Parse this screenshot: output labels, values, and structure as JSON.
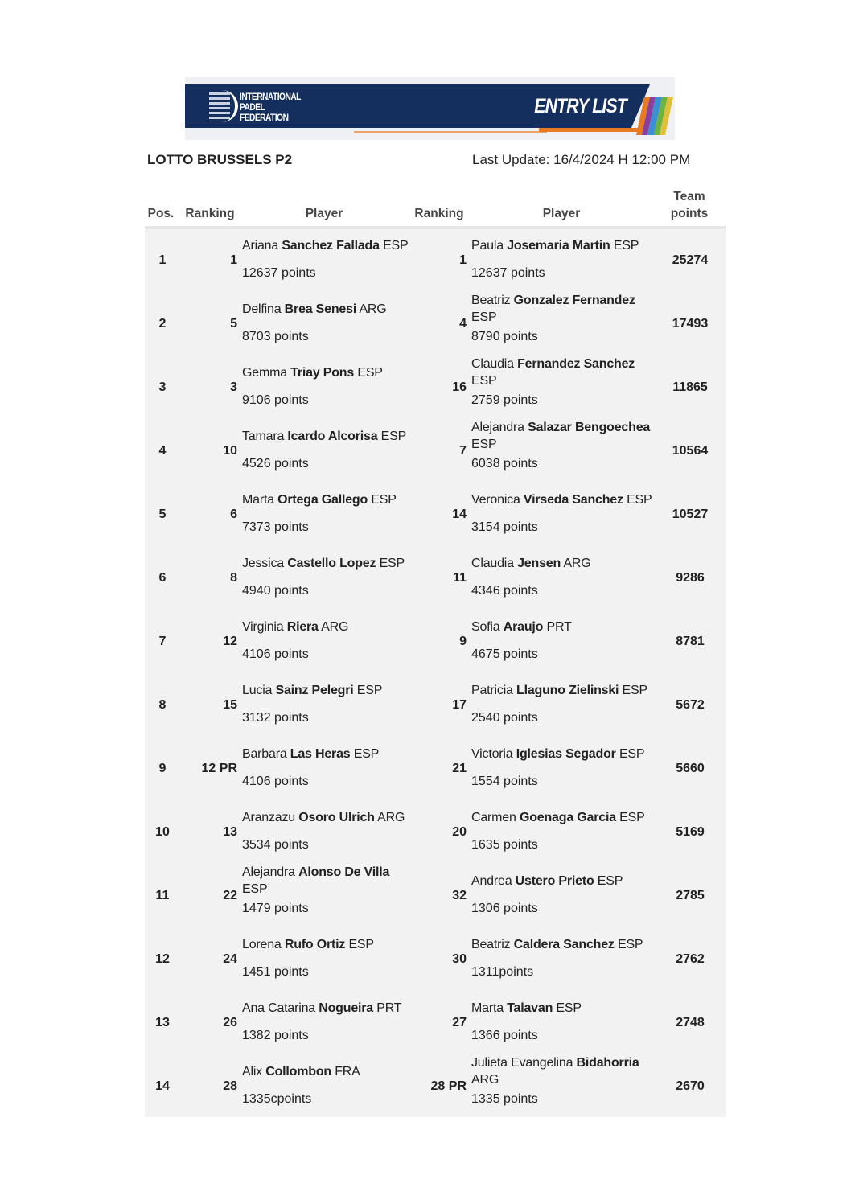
{
  "header": {
    "logo_text": [
      "INTERNATIONAL",
      "PADEL",
      "FEDERATION"
    ],
    "banner_title": "ENTRY LIST",
    "stripe_colors": [
      "#e77a23",
      "#8a3fa0",
      "#3c8fd0",
      "#6cb33f",
      "#e0c03a"
    ],
    "navy": "#142f5e"
  },
  "event_title": "LOTTO BRUSSELS P2",
  "last_update": "Last Update: 16/4/2024 H 12:00 PM",
  "columns": {
    "pos": "Pos.",
    "ranking1": "Ranking",
    "player1": "Player",
    "ranking2": "Ranking",
    "player2": "Player",
    "team_points": "Team points"
  },
  "rows": [
    {
      "pos": "1",
      "r1": "1",
      "p1": {
        "first": "Ariana",
        "last": "Sanchez Fallada",
        "country": "ESP",
        "points": "12637 points"
      },
      "r2": "1",
      "p2": {
        "first": "Paula",
        "last": "Josemaria Martin",
        "country": "ESP",
        "points": "12637 points"
      },
      "team": "25274"
    },
    {
      "pos": "2",
      "r1": "5",
      "p1": {
        "first": "Delfina",
        "last": "Brea Senesi",
        "country": "ARG",
        "points": "8703 points"
      },
      "r2": "4",
      "p2": {
        "first": "Beatriz",
        "last": "Gonzalez Fernandez",
        "country": "ESP",
        "points": "8790 points"
      },
      "team": "17493"
    },
    {
      "pos": "3",
      "r1": "3",
      "p1": {
        "first": "Gemma",
        "last": "Triay Pons",
        "country": "ESP",
        "points": "9106 points"
      },
      "r2": "16",
      "p2": {
        "first": "Claudia",
        "last": "Fernandez Sanchez",
        "country": "ESP",
        "points": "2759 points"
      },
      "team": "11865"
    },
    {
      "pos": "4",
      "r1": "10",
      "p1": {
        "first": "Tamara",
        "last": "Icardo Alcorisa",
        "country": "ESP",
        "points": "4526 points"
      },
      "r2": "7",
      "p2": {
        "first": "Alejandra",
        "last": "Salazar Bengoechea",
        "country": "ESP",
        "points": "6038 points"
      },
      "team": "10564"
    },
    {
      "pos": "5",
      "r1": "6",
      "p1": {
        "first": "Marta",
        "last": "Ortega Gallego",
        "country": "ESP",
        "points": "7373 points"
      },
      "r2": "14",
      "p2": {
        "first": "Veronica",
        "last": "Virseda Sanchez",
        "country": "ESP",
        "points": "3154 points"
      },
      "team": "10527"
    },
    {
      "pos": "6",
      "r1": "8",
      "p1": {
        "first": "Jessica",
        "last": "Castello Lopez",
        "country": "ESP",
        "points": "4940 points"
      },
      "r2": "11",
      "p2": {
        "first": "Claudia",
        "last": "Jensen",
        "country": "ARG",
        "points": "4346 points"
      },
      "team": "9286"
    },
    {
      "pos": "7",
      "r1": "12",
      "p1": {
        "first": "Virginia",
        "last": "Riera",
        "country": "ARG",
        "points": "4106 points"
      },
      "r2": "9",
      "p2": {
        "first": "Sofia",
        "last": "Araujo",
        "country": "PRT",
        "points": "4675 points"
      },
      "team": "8781"
    },
    {
      "pos": "8",
      "r1": "15",
      "p1": {
        "first": "Lucia",
        "last": "Sainz Pelegri",
        "country": "ESP",
        "points": "3132 points"
      },
      "r2": "17",
      "p2": {
        "first": "Patricia",
        "last": "Llaguno Zielinski",
        "country": "ESP",
        "points": "2540 points"
      },
      "team": "5672"
    },
    {
      "pos": "9",
      "r1": "12 PR",
      "p1": {
        "first": "Barbara",
        "last": "Las Heras",
        "country": "ESP",
        "points": "4106 points"
      },
      "r2": "21",
      "p2": {
        "first": "Victoria",
        "last": "Iglesias Segador",
        "country": "ESP",
        "points": "1554 points"
      },
      "team": "5660"
    },
    {
      "pos": "10",
      "r1": "13",
      "p1": {
        "first": "Aranzazu",
        "last": "Osoro Ulrich",
        "country": "ARG",
        "points": "3534 points"
      },
      "r2": "20",
      "p2": {
        "first": "Carmen",
        "last": "Goenaga Garcia",
        "country": "ESP",
        "points": "1635 points"
      },
      "team": "5169"
    },
    {
      "pos": "11",
      "r1": "22",
      "p1": {
        "first": "Alejandra",
        "last": "Alonso De Villa",
        "country": "ESP",
        "points": "1479 points"
      },
      "r2": "32",
      "p2": {
        "first": "Andrea",
        "last": "Ustero Prieto",
        "country": "ESP",
        "points": "1306 points"
      },
      "team": "2785"
    },
    {
      "pos": "12",
      "r1": "24",
      "p1": {
        "first": "Lorena",
        "last": "Rufo Ortiz",
        "country": "ESP",
        "points": "1451 points"
      },
      "r2": "30",
      "p2": {
        "first": "Beatriz",
        "last": "Caldera Sanchez",
        "country": "ESP",
        "points": "1311points"
      },
      "team": "2762"
    },
    {
      "pos": "13",
      "r1": "26",
      "p1": {
        "first": "Ana Catarina",
        "last": "Nogueira",
        "country": "PRT",
        "points": "1382 points"
      },
      "r2": "27",
      "p2": {
        "first": "Marta",
        "last": "Talavan",
        "country": "ESP",
        "points": "1366 points"
      },
      "team": "2748"
    },
    {
      "pos": "14",
      "r1": "28",
      "p1": {
        "first": "Alix",
        "last": "Collombon",
        "country": "FRA",
        "points": "1335cpoints"
      },
      "r2": "28 PR",
      "p2": {
        "first": "Julieta Evangelina",
        "last": "Bidahorria",
        "country": "ARG",
        "points": "1335 points"
      },
      "team": "2670"
    }
  ]
}
